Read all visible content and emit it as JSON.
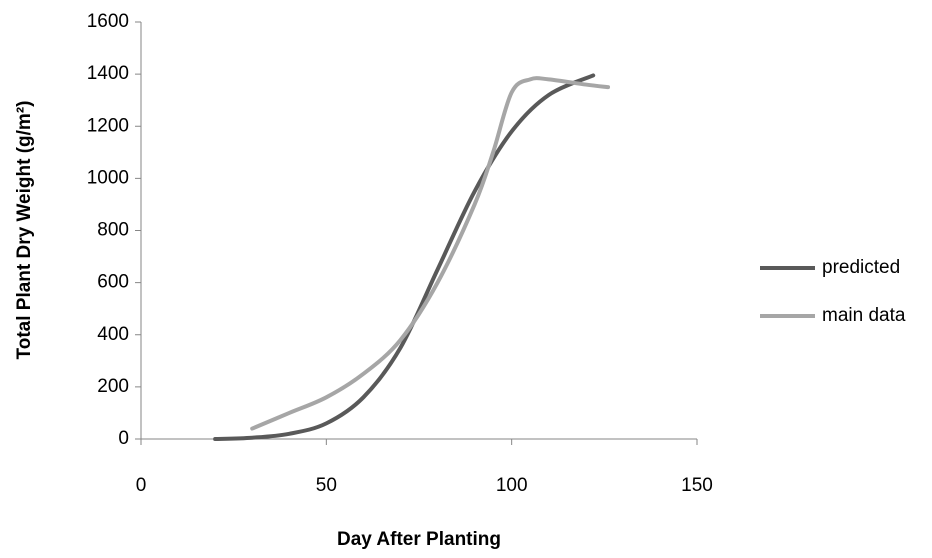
{
  "chart_data": {
    "type": "line",
    "x_label": "Day After Planting",
    "y_label": "Total Plant Dry Weight (g/m²)",
    "xlim": [
      0,
      150
    ],
    "xticks": [
      0,
      50,
      100,
      150
    ],
    "ylim": [
      0,
      1600
    ],
    "yticks": [
      0,
      200,
      400,
      600,
      800,
      1000,
      1200,
      1400,
      1600
    ],
    "grid": false,
    "legend": "right",
    "series": [
      {
        "name": "predicted",
        "color": "#595959",
        "x": [
          20,
          30,
          40,
          50,
          60,
          70,
          80,
          90,
          100,
          110,
          122
        ],
        "values": [
          0,
          5,
          20,
          60,
          160,
          350,
          650,
          950,
          1180,
          1320,
          1395
        ]
      },
      {
        "name": "main data",
        "color": "#a6a6a6",
        "x": [
          30,
          40,
          50,
          60,
          70,
          80,
          90,
          95,
          100,
          105,
          110,
          120,
          126
        ],
        "values": [
          40,
          100,
          160,
          250,
          380,
          600,
          900,
          1100,
          1330,
          1380,
          1380,
          1360,
          1350
        ]
      }
    ]
  }
}
